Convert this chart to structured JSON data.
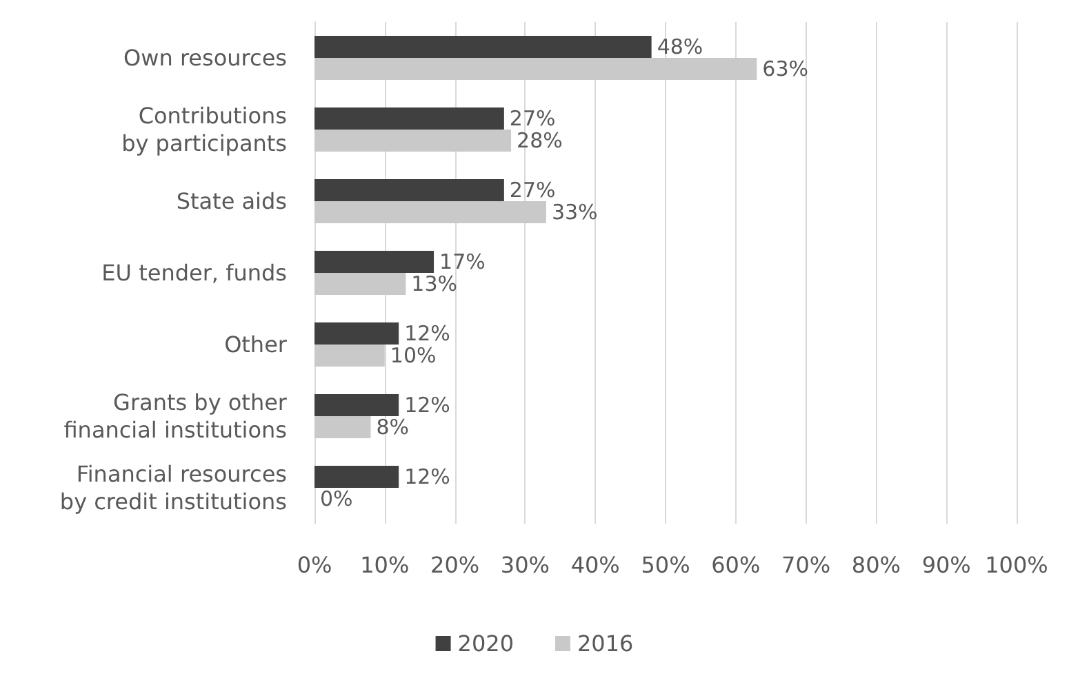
{
  "chart_data": {
    "type": "bar",
    "orientation": "horizontal",
    "categories": [
      "Own resources",
      "Contributions\nby participants",
      "State aids",
      "EU tender, funds",
      "Other",
      "Grants by other\nfinancial institutions",
      "Financial resources\nby credit institutions"
    ],
    "series": [
      {
        "name": "2020",
        "color": "#404040",
        "values": [
          48,
          27,
          27,
          17,
          12,
          12,
          12
        ],
        "value_labels": [
          "48%",
          "27%",
          "27%",
          "17%",
          "12%",
          "12%",
          "12%"
        ]
      },
      {
        "name": "2016",
        "color": "#c9c9c9",
        "values": [
          63,
          28,
          33,
          13,
          10,
          8,
          0
        ],
        "value_labels": [
          "63%",
          "28%",
          "33%",
          "13%",
          "10%",
          "8%",
          "0%"
        ]
      }
    ],
    "xlim": [
      0,
      100
    ],
    "xticks": [
      {
        "value": 0,
        "label": "0%"
      },
      {
        "value": 10,
        "label": "10%"
      },
      {
        "value": 20,
        "label": "20%"
      },
      {
        "value": 30,
        "label": "30%"
      },
      {
        "value": 40,
        "label": "40%"
      },
      {
        "value": 50,
        "label": "50%"
      },
      {
        "value": 60,
        "label": "60%"
      },
      {
        "value": 70,
        "label": "70%"
      },
      {
        "value": 80,
        "label": "80%"
      },
      {
        "value": 90,
        "label": "90%"
      },
      {
        "value": 100,
        "label": "100%"
      }
    ],
    "grid": "x",
    "legend": "bottom"
  }
}
